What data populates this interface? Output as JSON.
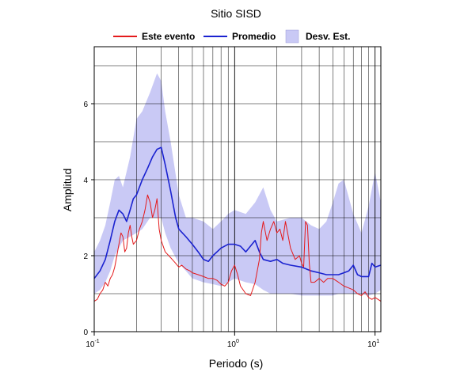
{
  "chart_data": {
    "type": "line",
    "title": "Sitio SISD",
    "xlabel": "Periodo (s)",
    "ylabel": "Amplitud",
    "x_scale": "log",
    "xlim": [
      0.1,
      11
    ],
    "ylim": [
      0,
      7.5
    ],
    "grid": true,
    "legend_position": "top",
    "x_ticks": [
      {
        "value": 0.1,
        "base": "10",
        "exp": "-1"
      },
      {
        "value": 1,
        "base": "10",
        "exp": "0"
      },
      {
        "value": 10,
        "base": "10",
        "exp": "1"
      }
    ],
    "y_ticks": [
      0,
      2,
      4,
      6
    ],
    "legend": [
      {
        "label": "Este evento",
        "kind": "line",
        "color": "#e41a1c"
      },
      {
        "label": "Promedio",
        "kind": "line",
        "color": "#1a22d0"
      },
      {
        "label": "Desv. Est.",
        "kind": "band",
        "color": "#c9c9f5"
      }
    ],
    "band": {
      "name": "Desv. Est.",
      "color": "#c9c9f5",
      "x": [
        0.1,
        0.11,
        0.12,
        0.13,
        0.14,
        0.15,
        0.16,
        0.18,
        0.2,
        0.22,
        0.25,
        0.28,
        0.3,
        0.32,
        0.35,
        0.4,
        0.45,
        0.5,
        0.6,
        0.7,
        0.8,
        0.9,
        1.0,
        1.2,
        1.4,
        1.6,
        1.8,
        2.0,
        2.5,
        3.0,
        3.5,
        4.0,
        4.5,
        5.0,
        5.5,
        6.0,
        7.0,
        8.0,
        9.0,
        10.0,
        11.0
      ],
      "upper": [
        2.1,
        2.4,
        2.8,
        3.4,
        4.0,
        4.1,
        3.8,
        4.6,
        5.6,
        5.8,
        6.3,
        6.8,
        6.6,
        5.8,
        5.0,
        3.6,
        3.0,
        3.0,
        2.9,
        2.7,
        2.9,
        3.1,
        3.2,
        3.1,
        3.4,
        3.8,
        3.2,
        2.9,
        3.0,
        3.0,
        2.8,
        2.7,
        2.9,
        3.4,
        3.9,
        4.0,
        3.1,
        2.6,
        3.3,
        4.2,
        3.4
      ],
      "lower": [
        1.0,
        1.1,
        1.3,
        1.6,
        2.0,
        2.2,
        2.4,
        2.5,
        2.6,
        2.7,
        3.0,
        3.0,
        3.0,
        2.6,
        2.2,
        1.8,
        1.6,
        1.4,
        1.3,
        1.25,
        1.2,
        1.3,
        1.4,
        1.3,
        1.25,
        1.1,
        1.0,
        1.0,
        1.0,
        0.95,
        0.95,
        0.95,
        0.95,
        0.95,
        1.0,
        1.0,
        1.0,
        1.0,
        0.95,
        1.0,
        1.1
      ]
    },
    "series": [
      {
        "name": "Promedio",
        "color": "#1a22d0",
        "x": [
          0.1,
          0.11,
          0.12,
          0.13,
          0.14,
          0.15,
          0.16,
          0.17,
          0.18,
          0.19,
          0.2,
          0.22,
          0.24,
          0.26,
          0.28,
          0.3,
          0.32,
          0.35,
          0.38,
          0.4,
          0.45,
          0.5,
          0.55,
          0.6,
          0.65,
          0.7,
          0.8,
          0.9,
          1.0,
          1.1,
          1.2,
          1.4,
          1.5,
          1.6,
          1.8,
          2.0,
          2.2,
          2.5,
          3.0,
          3.5,
          4.0,
          4.5,
          5.0,
          5.5,
          6.0,
          6.5,
          7.0,
          7.5,
          8.0,
          9.0,
          9.5,
          10.0,
          11.0
        ],
        "y": [
          1.4,
          1.6,
          1.9,
          2.4,
          2.9,
          3.2,
          3.1,
          2.9,
          3.2,
          3.5,
          3.6,
          4.0,
          4.3,
          4.6,
          4.8,
          4.85,
          4.4,
          3.7,
          3.0,
          2.7,
          2.5,
          2.3,
          2.1,
          1.9,
          1.85,
          2.0,
          2.2,
          2.3,
          2.3,
          2.25,
          2.1,
          2.4,
          2.1,
          1.9,
          1.85,
          1.9,
          1.8,
          1.75,
          1.7,
          1.6,
          1.55,
          1.5,
          1.5,
          1.5,
          1.55,
          1.6,
          1.75,
          1.5,
          1.45,
          1.45,
          1.8,
          1.7,
          1.75
        ]
      },
      {
        "name": "Este evento",
        "color": "#e41a1c",
        "x": [
          0.1,
          0.105,
          0.11,
          0.115,
          0.12,
          0.125,
          0.13,
          0.135,
          0.14,
          0.145,
          0.15,
          0.155,
          0.16,
          0.165,
          0.17,
          0.175,
          0.18,
          0.185,
          0.19,
          0.2,
          0.21,
          0.22,
          0.23,
          0.24,
          0.25,
          0.26,
          0.27,
          0.28,
          0.29,
          0.3,
          0.32,
          0.34,
          0.36,
          0.38,
          0.4,
          0.42,
          0.45,
          0.48,
          0.5,
          0.55,
          0.6,
          0.65,
          0.7,
          0.75,
          0.8,
          0.85,
          0.9,
          0.95,
          1.0,
          1.05,
          1.1,
          1.2,
          1.3,
          1.4,
          1.5,
          1.55,
          1.6,
          1.7,
          1.8,
          1.9,
          2.0,
          2.1,
          2.2,
          2.3,
          2.5,
          2.7,
          2.9,
          3.0,
          3.1,
          3.2,
          3.3,
          3.4,
          3.5,
          3.7,
          4.0,
          4.3,
          4.6,
          5.0,
          5.5,
          6.0,
          6.5,
          7.0,
          7.5,
          8.0,
          8.5,
          9.0,
          9.5,
          10.0,
          10.5,
          11.0
        ],
        "y": [
          0.8,
          0.85,
          1.0,
          1.1,
          1.3,
          1.2,
          1.4,
          1.5,
          1.7,
          2.0,
          2.3,
          2.6,
          2.5,
          2.1,
          2.2,
          2.6,
          2.8,
          2.5,
          2.3,
          2.4,
          2.7,
          2.9,
          3.2,
          3.6,
          3.4,
          3.0,
          3.2,
          3.5,
          2.7,
          2.4,
          2.1,
          2.0,
          1.9,
          1.8,
          1.7,
          1.75,
          1.65,
          1.6,
          1.55,
          1.5,
          1.45,
          1.4,
          1.4,
          1.35,
          1.25,
          1.2,
          1.3,
          1.6,
          1.75,
          1.5,
          1.2,
          1.0,
          0.95,
          1.3,
          1.9,
          2.6,
          2.9,
          2.4,
          2.7,
          2.9,
          2.6,
          2.7,
          2.4,
          2.9,
          2.2,
          1.9,
          2.0,
          1.8,
          1.7,
          2.9,
          2.8,
          1.8,
          1.3,
          1.3,
          1.4,
          1.3,
          1.4,
          1.4,
          1.3,
          1.2,
          1.15,
          1.1,
          1.0,
          0.95,
          1.05,
          0.9,
          0.85,
          0.9,
          0.85,
          0.8
        ]
      }
    ]
  }
}
